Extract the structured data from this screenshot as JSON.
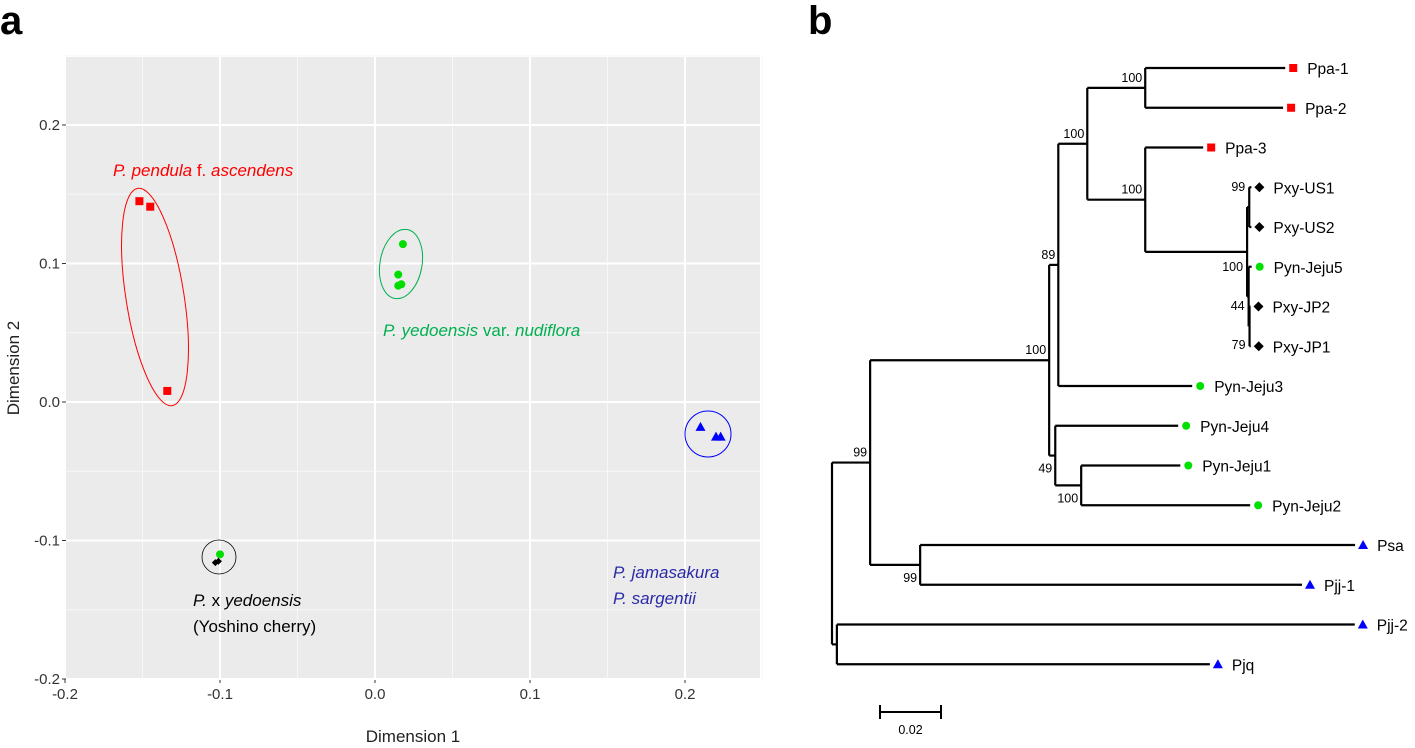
{
  "panels": {
    "a": "a",
    "b": "b"
  },
  "chart_data": [
    {
      "type": "scatter",
      "title": "",
      "xlabel": "Dimension 1",
      "ylabel": "Dimension 2",
      "xlim": [
        -0.2,
        0.25
      ],
      "ylim": [
        -0.2,
        0.25
      ],
      "xticks": [
        "-0.2",
        "-0.1",
        "0.0",
        "0.1",
        "0.2"
      ],
      "xtick_values": [
        -0.2,
        -0.1,
        0.0,
        0.1,
        0.2
      ],
      "yticks": [
        "-0.2",
        "-0.1",
        "0.0",
        "0.1",
        "0.2"
      ],
      "ytick_values": [
        -0.2,
        -0.1,
        0.0,
        0.1,
        0.2
      ],
      "grid": true,
      "series": [
        {
          "name": "P. pendula f. ascendens",
          "marker": "square",
          "color": "#ff0000",
          "points": [
            [
              -0.152,
              0.145
            ],
            [
              -0.145,
              0.141
            ],
            [
              -0.134,
              0.008
            ]
          ]
        },
        {
          "name": "P. yedoensis var. nudiflora",
          "marker": "circle",
          "color": "#00dd00",
          "points": [
            [
              0.018,
              0.114
            ],
            [
              0.015,
              0.092
            ],
            [
              0.015,
              0.084
            ],
            [
              0.017,
              0.085
            ],
            [
              -0.1,
              -0.11
            ]
          ]
        },
        {
          "name": "P. jamasakura / P. sargentii",
          "marker": "triangle",
          "color": "#0000ff",
          "points": [
            [
              0.21,
              -0.018
            ],
            [
              0.22,
              -0.025
            ],
            [
              0.223,
              -0.025
            ]
          ]
        },
        {
          "name": "P. x yedoensis",
          "marker": "diamond",
          "color": "#000000",
          "points": [
            [
              -0.103,
              -0.116
            ],
            [
              -0.101,
              -0.115
            ]
          ]
        }
      ],
      "annotations": [
        {
          "color": "#ff0000",
          "lines": [
            [
              {
                "t": "P. pendula",
                "i": true
              },
              {
                "t": " f. ",
                "i": false
              },
              {
                "t": "ascendens",
                "i": true
              }
            ]
          ]
        },
        {
          "color": "#00b050",
          "lines": [
            [
              {
                "t": "P. yedoensis",
                "i": true
              },
              {
                "t": " var. ",
                "i": false
              },
              {
                "t": "nudiflora",
                "i": true
              }
            ]
          ]
        },
        {
          "color": "#2a2aa8",
          "lines": [
            [
              {
                "t": "P. jamasakura",
                "i": true
              }
            ],
            [
              {
                "t": "P. sargentii",
                "i": true
              }
            ]
          ]
        },
        {
          "color": "#000000",
          "lines": [
            [
              {
                "t": "P.",
                "i": true
              },
              {
                "t": " x ",
                "i": false
              },
              {
                "t": "yedoensis",
                "i": true
              }
            ],
            [
              {
                "t": "(Yoshino cherry)",
                "i": false
              }
            ]
          ]
        }
      ]
    },
    {
      "type": "tree",
      "scale_bar": {
        "value": 0.02,
        "label": "0.02"
      },
      "marker_colors": {
        "square": "#ff0000",
        "diamond": "#000000",
        "circle": "#00e000",
        "triangle": "#0000ff"
      },
      "tree": {
        "id": "root",
        "len": 0,
        "children": [
          {
            "id": "A",
            "len": 0.0125,
            "boot": "99",
            "children": [
              {
                "id": "C",
                "len": 0.0587,
                "boot": "100",
                "children": [
                  {
                    "id": "D",
                    "len": 0.003,
                    "boot": "89",
                    "children": [
                      {
                        "id": "E",
                        "len": 0.0095,
                        "boot": "100",
                        "children": [
                          {
                            "id": "H",
                            "len": 0.019,
                            "boot": "100",
                            "children": [
                              {
                                "name": "Ppa-1",
                                "len": 0.0459,
                                "marker": "square"
                              },
                              {
                                "name": "Ppa-2",
                                "len": 0.0452,
                                "marker": "square"
                              }
                            ]
                          },
                          {
                            "id": "I",
                            "len": 0.019,
                            "boot": "100",
                            "children": [
                              {
                                "name": "Ppa-3",
                                "len": 0.019,
                                "marker": "square"
                              },
                              {
                                "id": "J",
                                "len": 0.0334,
                                "boot": "100",
                                "children": [
                                  {
                                    "id": "K",
                                    "len": 0.0007,
                                    "boot": "99",
                                    "children": [
                                      {
                                        "name": "Pxy-US1",
                                        "len": 0.0007,
                                        "marker": "diamond"
                                      },
                                      {
                                        "name": "Pxy-US2",
                                        "len": 0.0007,
                                        "marker": "diamond"
                                      }
                                    ]
                                  },
                                  {
                                    "id": "L",
                                    "len": 0.0005,
                                    "boot": "44",
                                    "children": [
                                      {
                                        "name": "Pyn-Jeju5",
                                        "len": 0.001,
                                        "marker": "circle"
                                      },
                                      {
                                        "id": "M",
                                        "len": 0.0003,
                                        "boot": "79",
                                        "children": [
                                          {
                                            "name": "Pxy-JP2",
                                            "len": 0.0003,
                                            "marker": "diamond"
                                          },
                                          {
                                            "name": "Pxy-JP1",
                                            "len": 0.0004,
                                            "marker": "diamond"
                                          }
                                        ]
                                      }
                                    ]
                                  }
                                ]
                              }
                            ]
                          }
                        ]
                      },
                      {
                        "name": "Pyn-Jeju3",
                        "len": 0.0439,
                        "marker": "circle"
                      }
                    ]
                  },
                  {
                    "id": "F",
                    "len": 0.002,
                    "boot": "49",
                    "children": [
                      {
                        "name": "Pyn-Jeju4",
                        "len": 0.0403,
                        "marker": "circle"
                      },
                      {
                        "id": "G",
                        "len": 0.0085,
                        "boot": "100",
                        "children": [
                          {
                            "name": "Pyn-Jeju1",
                            "len": 0.0325,
                            "marker": "circle"
                          },
                          {
                            "name": "Pyn-Jeju2",
                            "len": 0.0554,
                            "marker": "circle"
                          }
                        ]
                      }
                    ]
                  }
                ]
              },
              {
                "id": "N",
                "len": 0.0164,
                "boot": "99",
                "children": [
                  {
                    "name": "Psa",
                    "len": 0.1426,
                    "marker": "triangle"
                  },
                  {
                    "name": "Pjj-1",
                    "len": 0.1252,
                    "marker": "triangle"
                  }
                ]
              }
            ]
          },
          {
            "id": "B",
            "len": 0.0016,
            "children": [
              {
                "name": "Pjj-2",
                "len": 0.1698,
                "marker": "triangle"
              },
              {
                "name": "Pjq",
                "len": 0.1223,
                "marker": "triangle"
              }
            ]
          }
        ]
      }
    }
  ]
}
